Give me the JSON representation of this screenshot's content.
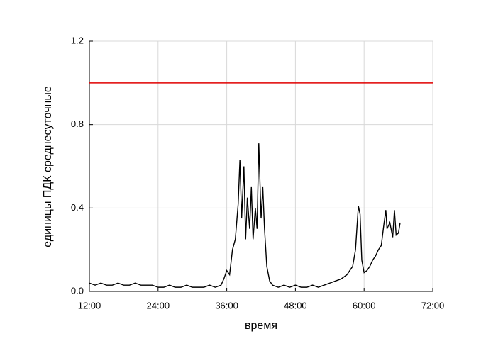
{
  "chart_data": {
    "type": "line",
    "x_label": "время",
    "y_label": "единицы ПДК среднесуточные",
    "x": [
      12,
      13,
      14,
      15,
      16,
      17,
      18,
      19,
      20,
      21,
      22,
      23,
      24,
      25,
      26,
      27,
      28,
      29,
      30,
      31,
      32,
      33,
      34,
      35,
      35.5,
      36,
      36.5,
      37,
      37.5,
      38,
      38.3,
      38.6,
      39,
      39.3,
      39.6,
      40,
      40.3,
      40.6,
      41,
      41.3,
      41.6,
      42,
      42.3,
      42.6,
      43,
      43.5,
      44,
      45,
      46,
      47,
      48,
      49,
      50,
      51,
      52,
      53,
      54,
      55,
      56,
      57,
      57.5,
      58,
      58.5,
      59,
      59.3,
      59.6,
      60,
      60.5,
      61,
      61.5,
      62,
      62.5,
      63,
      63.5,
      63.8,
      64,
      64.5,
      65,
      65.3,
      65.6,
      66,
      66.3
    ],
    "series": [
      {
        "color": "#000000",
        "values": [
          0.04,
          0.03,
          0.04,
          0.03,
          0.03,
          0.04,
          0.03,
          0.03,
          0.04,
          0.03,
          0.03,
          0.03,
          0.02,
          0.02,
          0.03,
          0.02,
          0.02,
          0.03,
          0.02,
          0.02,
          0.02,
          0.03,
          0.02,
          0.03,
          0.06,
          0.1,
          0.08,
          0.2,
          0.25,
          0.42,
          0.63,
          0.35,
          0.6,
          0.25,
          0.45,
          0.3,
          0.5,
          0.25,
          0.4,
          0.3,
          0.71,
          0.35,
          0.5,
          0.3,
          0.12,
          0.05,
          0.03,
          0.02,
          0.03,
          0.02,
          0.03,
          0.02,
          0.02,
          0.03,
          0.02,
          0.03,
          0.04,
          0.05,
          0.06,
          0.08,
          0.1,
          0.12,
          0.2,
          0.41,
          0.37,
          0.15,
          0.09,
          0.1,
          0.12,
          0.15,
          0.17,
          0.2,
          0.22,
          0.33,
          0.39,
          0.3,
          0.33,
          0.26,
          0.39,
          0.27,
          0.28,
          0.33
        ]
      }
    ],
    "reference_line": {
      "value": 1,
      "color": "#e00000"
    },
    "xlim": [
      12,
      72
    ],
    "xticks": [
      {
        "value": 12,
        "label": "12:00"
      },
      {
        "value": 24,
        "label": "24:00"
      },
      {
        "value": 36,
        "label": "36:00"
      },
      {
        "value": 48,
        "label": "48:00"
      },
      {
        "value": 60,
        "label": "60:00"
      },
      {
        "value": 72,
        "label": "72:00"
      }
    ],
    "ylim": [
      0,
      1.2
    ],
    "yticks": [
      {
        "value": 0,
        "label": "0.0"
      },
      0.4,
      0.8,
      1.2
    ],
    "grid": true
  }
}
